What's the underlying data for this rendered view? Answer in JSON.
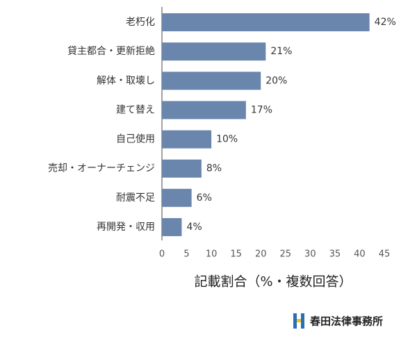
{
  "chart_data": {
    "type": "bar",
    "orientation": "horizontal",
    "x_label": "記載割合（%・複数回答）",
    "categories": [
      "老朽化",
      "貸主都合・更新拒絶",
      "解体・取壊し",
      "建て替え",
      "自己使用",
      "売却・オーナーチェンジ",
      "耐震不足",
      "再開発・収用"
    ],
    "values": [
      42,
      21,
      20,
      17,
      10,
      8,
      6,
      4
    ],
    "value_labels": [
      "42%",
      "21%",
      "20%",
      "17%",
      "10%",
      "8%",
      "6%",
      "4%"
    ],
    "color": "#6a86ad",
    "xlim": [
      0,
      45
    ],
    "xticks": [
      0,
      5,
      10,
      15,
      20,
      25,
      30,
      35,
      40,
      45
    ],
    "grid": false
  },
  "logo": "春田法律事務所"
}
